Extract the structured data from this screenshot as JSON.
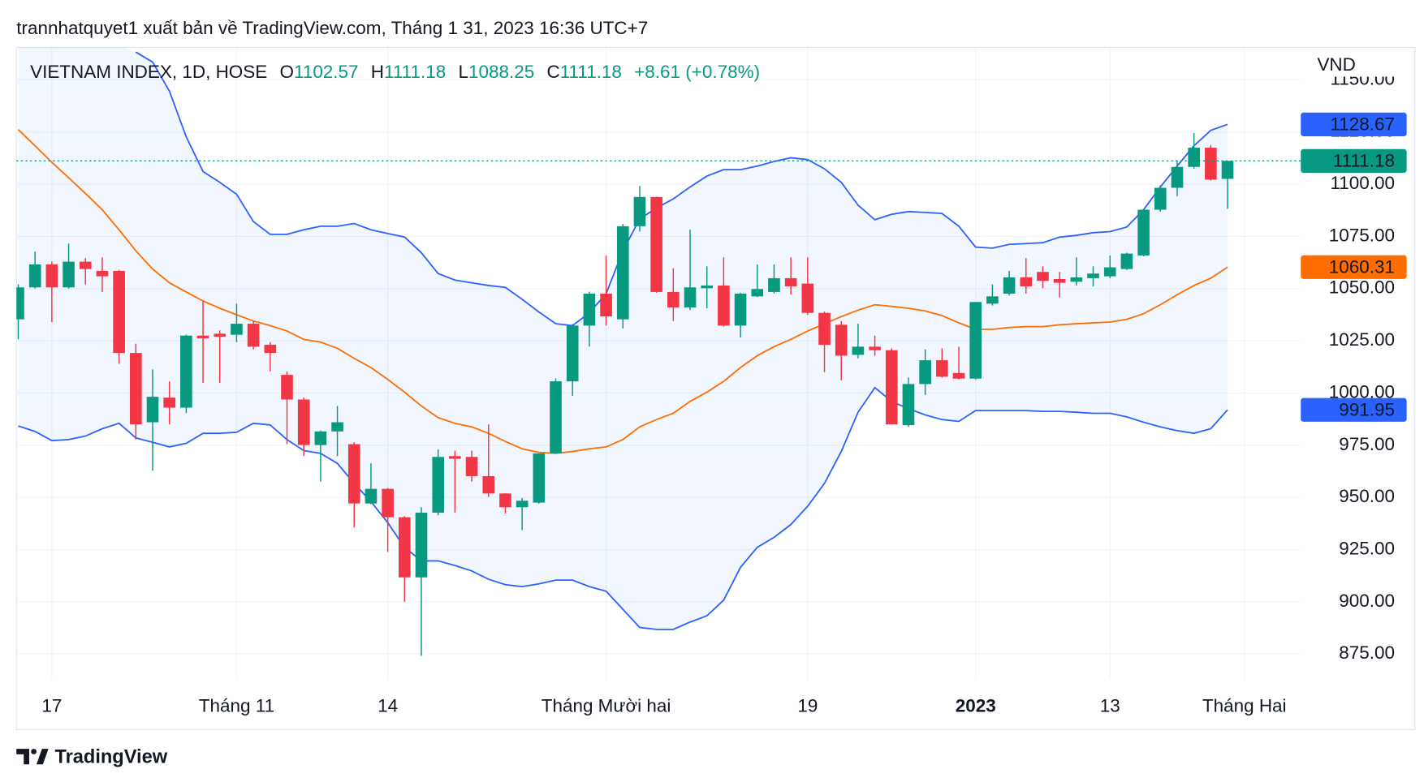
{
  "chart_data": {
    "type": "candlestick",
    "byline": "trannhatquyet1 xuất bản về TradingView.com, Tháng 1 31, 2023 16:36 UTC+7",
    "title": "VIETNAM INDEX, 1D, HOSE",
    "ohlc_labels": [
      "O",
      "H",
      "L",
      "C"
    ],
    "change": "+8.61 (+0.78%)",
    "currency": "VND",
    "brand": "TradingView",
    "up_color": "#089981",
    "down_color": "#f23645",
    "band_color": "#2962ff",
    "grid": true,
    "categories": [
      null,
      null,
      "17",
      null,
      null,
      null,
      null,
      null,
      null,
      null,
      null,
      null,
      null,
      "Tháng 11",
      null,
      null,
      null,
      null,
      null,
      null,
      null,
      null,
      "14",
      null,
      null,
      null,
      null,
      null,
      null,
      null,
      null,
      null,
      null,
      null,
      null,
      "Tháng Mười hai",
      null,
      null,
      null,
      null,
      null,
      null,
      null,
      null,
      null,
      null,
      null,
      "19",
      null,
      null,
      null,
      null,
      null,
      null,
      null,
      null,
      null,
      "2023",
      null,
      null,
      null,
      null,
      null,
      null,
      null,
      "13",
      null,
      null,
      null,
      null,
      null,
      null,
      null,
      "Tháng Hai"
    ],
    "open": [
      1035.3,
      1050.6,
      1061.6,
      1050.6,
      1062.9,
      1058.5,
      1058.5,
      1019.2,
      986,
      997.8,
      993,
      1027.5,
      1028.4,
      1027.9,
      1033.2,
      1023.1,
      1008.7,
      996.9,
      975.1,
      981.6,
      975.5,
      947.1,
      954.1,
      940.5,
      911.7,
      942.7,
      969.8,
      969.4,
      960.2,
      951.9,
      945.3,
      947.5,
      971.1,
      1005.6,
      1032.3,
      1047.6,
      1035.3,
      1079.9,
      1093.9,
      1048.4,
      1041,
      1050.2,
      1051.5,
      1032.3,
      1046.3,
      1048.4,
      1055,
      1052.4,
      1038.4,
      1032.7,
      1018.3,
      1022.2,
      1020.5,
      984.6,
      1004.3,
      1015.7,
      1009.6,
      1006.9,
      1042.8,
      1047.6,
      1055.4,
      1058,
      1054.6,
      1053.3,
      1055,
      1055.9,
      1059.4,
      1065.9,
      1087.8,
      1098.3,
      1108.3,
      1117.5,
      1102.57,
      null
    ],
    "high": [
      1052,
      1067.7,
      1063,
      1071.6,
      1064.6,
      1065,
      1059,
      1023.6,
      1011.3,
      1005.6,
      1028,
      1044,
      1030,
      1042.8,
      1034.5,
      1024.4,
      1010.4,
      997.8,
      982,
      993.8,
      976.4,
      966.3,
      954.5,
      941,
      945.3,
      972.9,
      972.4,
      972.4,
      985,
      952,
      949.7,
      971.1,
      1007,
      1033,
      1048.5,
      1065.9,
      1081,
      1099.1,
      1094,
      1059.8,
      1078.2,
      1060.7,
      1065,
      1048,
      1061.6,
      1061.6,
      1065,
      1065,
      1039,
      1034.5,
      1033.2,
      1027.5,
      1021.4,
      1007.4,
      1020.9,
      1021.4,
      1022.2,
      1043.6,
      1052,
      1058.5,
      1064.6,
      1060.7,
      1058,
      1065,
      1060.7,
      1065.9,
      1067.2,
      1088.2,
      1099.6,
      1111.4,
      1124.5,
      1118.8,
      1111.18,
      null
    ],
    "low": [
      1025.7,
      1050,
      1034,
      1050,
      1052,
      1048.4,
      1014,
      977.7,
      962.8,
      985,
      990.4,
      1004.8,
      1004.8,
      1024.4,
      1020.9,
      1010.4,
      975.5,
      969.8,
      957.6,
      969.8,
      935.7,
      946.7,
      923.9,
      899.9,
      874.1,
      941.4,
      942.7,
      957.6,
      950.2,
      942.3,
      934.4,
      947,
      971,
      998.6,
      1022.2,
      1032.3,
      1031,
      1077.3,
      1048,
      1034.5,
      1039.7,
      1040.6,
      1031.8,
      1026.6,
      1046,
      1047.6,
      1047.1,
      1037.5,
      1010,
      1006.1,
      1016.6,
      1017.9,
      985,
      983.8,
      999.1,
      1007.4,
      1006.5,
      1006.5,
      1041.9,
      1046.7,
      1047.6,
      1050.2,
      1045.8,
      1051.5,
      1051.1,
      1055,
      1058.9,
      1065.5,
      1086.9,
      1094.3,
      1107.4,
      1101.7,
      1088.25,
      null
    ],
    "close": [
      1050.6,
      1061.6,
      1050.6,
      1062.9,
      1059.4,
      1055.9,
      1019.2,
      985,
      998.2,
      993,
      1027.5,
      1026.2,
      1027,
      1033.2,
      1022.2,
      1019.2,
      996.9,
      975.1,
      981.6,
      986,
      947.1,
      954.1,
      940.5,
      911.7,
      942.7,
      969.4,
      968.5,
      960.2,
      951.9,
      945.3,
      948.4,
      971.1,
      1005.6,
      1032.3,
      1047.6,
      1036.7,
      1079.9,
      1093.9,
      1048.4,
      1041,
      1050.6,
      1051.5,
      1032.3,
      1047.6,
      1049.8,
      1055,
      1051.1,
      1038.4,
      1023.1,
      1017.9,
      1022.2,
      1020.5,
      985,
      1004.3,
      1015.7,
      1007.8,
      1006.9,
      1043.6,
      1046.3,
      1055.4,
      1051.1,
      1053.7,
      1052.8,
      1055.4,
      1057.2,
      1060.2,
      1066.8,
      1087.8,
      1098.3,
      1108.3,
      1117.5,
      1102.2,
      1111.18,
      null
    ],
    "lines": [
      {
        "color": "#2962ff",
        "values": [
          null,
          null,
          null,
          null,
          null,
          null,
          null,
          1163.3,
          1158.5,
          1144.6,
          1122.7,
          1106.1,
          1100.9,
          1095.2,
          1082.1,
          1076,
          1076,
          1078.2,
          1079.9,
          1079.9,
          1081.2,
          1078.2,
          1076.4,
          1074.7,
          1067.2,
          1057.2,
          1054.1,
          1052.8,
          1051.5,
          1050.6,
          1044.9,
          1038.8,
          1033.2,
          1032.3,
          1038.4,
          1047.6,
          1068.1,
          1083.4,
          1088.6,
          1093,
          1098.7,
          1103.9,
          1107,
          1107,
          1108.7,
          1110.9,
          1112.7,
          1111.8,
          1107.4,
          1100.9,
          1090,
          1083,
          1085.6,
          1086.9,
          1086.5,
          1086,
          1079.9,
          1069.9,
          1069.4,
          1071.2,
          1071.6,
          1072,
          1074.7,
          1075.5,
          1076.8,
          1077.3,
          1079.5,
          1087.8,
          1098.7,
          1108.7,
          1118.4,
          1125.8,
          1128.67,
          null
        ]
      },
      {
        "color": "#ff6d00",
        "values": [
          1126.2,
          1118.4,
          1110.5,
          1103.1,
          1095.6,
          1087.8,
          1078.2,
          1068.1,
          1059.4,
          1052.8,
          1048.4,
          1044.1,
          1040.6,
          1037.5,
          1034.5,
          1032.3,
          1029.7,
          1025.7,
          1024.4,
          1021.4,
          1016.6,
          1012.2,
          1006.5,
          1000.4,
          993.8,
          988.2,
          985.5,
          983.8,
          980.7,
          976.8,
          973.3,
          971.6,
          971.1,
          972,
          973.3,
          974.2,
          977.7,
          983.8,
          987.3,
          990.3,
          996,
          1000.4,
          1005.6,
          1012.2,
          1017.9,
          1022.2,
          1025.7,
          1029.7,
          1033.2,
          1036.6,
          1039.7,
          1042.3,
          1041.5,
          1040.6,
          1039.3,
          1037.1,
          1033.6,
          1030.5,
          1030.5,
          1031.4,
          1031.8,
          1031.8,
          1032.7,
          1033.2,
          1033.6,
          1034,
          1035.3,
          1038,
          1042.3,
          1047.1,
          1051.5,
          1055,
          1060.31,
          null
        ]
      },
      {
        "color": "#2962ff",
        "values": [
          984.2,
          981.6,
          977.2,
          977.7,
          979.4,
          982.9,
          985.5,
          978.5,
          976.4,
          974.2,
          975.9,
          980.7,
          980.7,
          981.2,
          985.5,
          984.7,
          977.7,
          972.4,
          971.1,
          966.3,
          956.7,
          948,
          937.9,
          926.1,
          919.6,
          919.6,
          917.4,
          914.8,
          910.8,
          908.2,
          907.3,
          908.6,
          910.4,
          910.4,
          907.3,
          905.1,
          896.4,
          887.7,
          886.8,
          886.8,
          890.3,
          893.3,
          900.8,
          916.5,
          926.1,
          930.9,
          937,
          945.8,
          956.7,
          972,
          990.8,
          1002.6,
          996,
          992.5,
          989.5,
          987.3,
          986.4,
          991.6,
          991.6,
          991.6,
          991.6,
          991.2,
          991.2,
          990.8,
          990.3,
          990.3,
          988.6,
          986,
          983.8,
          982,
          980.7,
          982.9,
          991.95,
          null
        ]
      }
    ],
    "ylim": [
      862.8,
      1166.4
    ],
    "yticks": [
      {
        "value": 875,
        "label": "875.00"
      },
      {
        "value": 900,
        "label": "900.00"
      },
      {
        "value": 925,
        "label": "925.00"
      },
      {
        "value": 950,
        "label": "950.00"
      },
      {
        "value": 975,
        "label": "975.00"
      },
      {
        "value": 1000,
        "label": "1000.00"
      },
      {
        "value": 1025,
        "label": "1025.00"
      },
      {
        "value": 1050,
        "label": "1050.00"
      },
      {
        "value": 1075,
        "label": "1075.00"
      },
      {
        "value": 1100,
        "label": "1100.00"
      },
      {
        "value": 1125,
        "label": "1125.00"
      },
      {
        "value": 1150,
        "label": "1150.00"
      }
    ]
  }
}
